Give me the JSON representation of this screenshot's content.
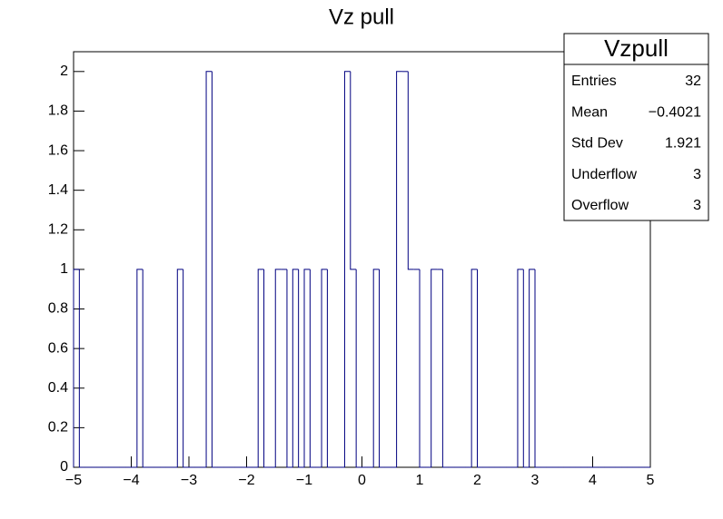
{
  "chart_data": {
    "type": "histogram",
    "title": "Vz pull",
    "bins": [
      -5,
      -4.9,
      -4.8,
      -4.7,
      -4.6,
      -4.5,
      -4.4,
      -4.3,
      -4.2,
      -4.1,
      -4,
      -3.9,
      -3.8,
      -3.7,
      -3.6,
      -3.5,
      -3.4,
      -3.3,
      -3.2,
      -3.1,
      -3,
      -2.9,
      -2.8,
      -2.7,
      -2.6,
      -2.5,
      -2.4,
      -2.3,
      -2.2,
      -2.1,
      -2,
      -1.9,
      -1.8,
      -1.7,
      -1.6,
      -1.5,
      -1.4,
      -1.3,
      -1.2,
      -1.1,
      -1,
      -0.9,
      -0.8,
      -0.7,
      -0.6,
      -0.5,
      -0.4,
      -0.3,
      -0.2,
      -0.1,
      0,
      0.1,
      0.2,
      0.3,
      0.4,
      0.5,
      0.6,
      0.7,
      0.8,
      0.9,
      1,
      1.1,
      1.2,
      1.3,
      1.4,
      1.5,
      1.6,
      1.7,
      1.8,
      1.9,
      2,
      2.1,
      2.2,
      2.3,
      2.4,
      2.5,
      2.6,
      2.7,
      2.8,
      2.9,
      3,
      3.1,
      3.2,
      3.3,
      3.4,
      3.5,
      3.6,
      3.7,
      3.8,
      3.9,
      4,
      4.1,
      4.2,
      4.3,
      4.4,
      4.5,
      4.6,
      4.7,
      4.8,
      4.9,
      5
    ],
    "values": [
      1,
      0,
      0,
      0,
      0,
      0,
      0,
      0,
      0,
      0,
      0,
      1,
      0,
      0,
      0,
      0,
      0,
      0,
      1,
      0,
      0,
      0,
      0,
      2,
      0,
      0,
      0,
      0,
      0,
      0,
      0,
      0,
      1,
      0,
      0,
      1,
      1,
      0,
      1,
      0,
      1,
      0,
      0,
      1,
      0,
      0,
      0,
      2,
      1,
      0,
      0,
      0,
      1,
      0,
      0,
      0,
      2,
      2,
      1,
      1,
      0,
      0,
      1,
      1,
      0,
      0,
      0,
      0,
      0,
      1,
      0,
      0,
      0,
      0,
      0,
      0,
      0,
      1,
      0,
      1,
      0,
      0,
      0,
      0,
      0,
      0,
      0,
      0,
      0,
      0,
      0,
      0,
      0,
      0,
      0,
      0,
      0,
      0,
      0,
      0
    ],
    "color": "#000080",
    "xlim": [
      -5,
      5
    ],
    "ylim": [
      0,
      2.1
    ],
    "xticks": [
      {
        "value": -5,
        "label": "−5"
      },
      {
        "value": -4,
        "label": "−4"
      },
      {
        "value": -3,
        "label": "−3"
      },
      {
        "value": -2,
        "label": "−2"
      },
      {
        "value": -1,
        "label": "−1"
      },
      0,
      1,
      2,
      3,
      4,
      5
    ],
    "yticks": [
      0,
      0.2,
      0.4,
      0.6,
      0.8,
      1,
      1.2,
      1.4,
      1.6,
      1.8,
      2
    ],
    "grid": false,
    "stats_box": {
      "title": "Vzpull",
      "rows": [
        {
          "label": "Entries",
          "value": "32"
        },
        {
          "label": "Mean",
          "value": "−0.4021"
        },
        {
          "label": "Std Dev",
          "value": "1.921"
        },
        {
          "label": "Underflow",
          "value": "3"
        },
        {
          "label": "Overflow",
          "value": "3"
        }
      ]
    }
  }
}
